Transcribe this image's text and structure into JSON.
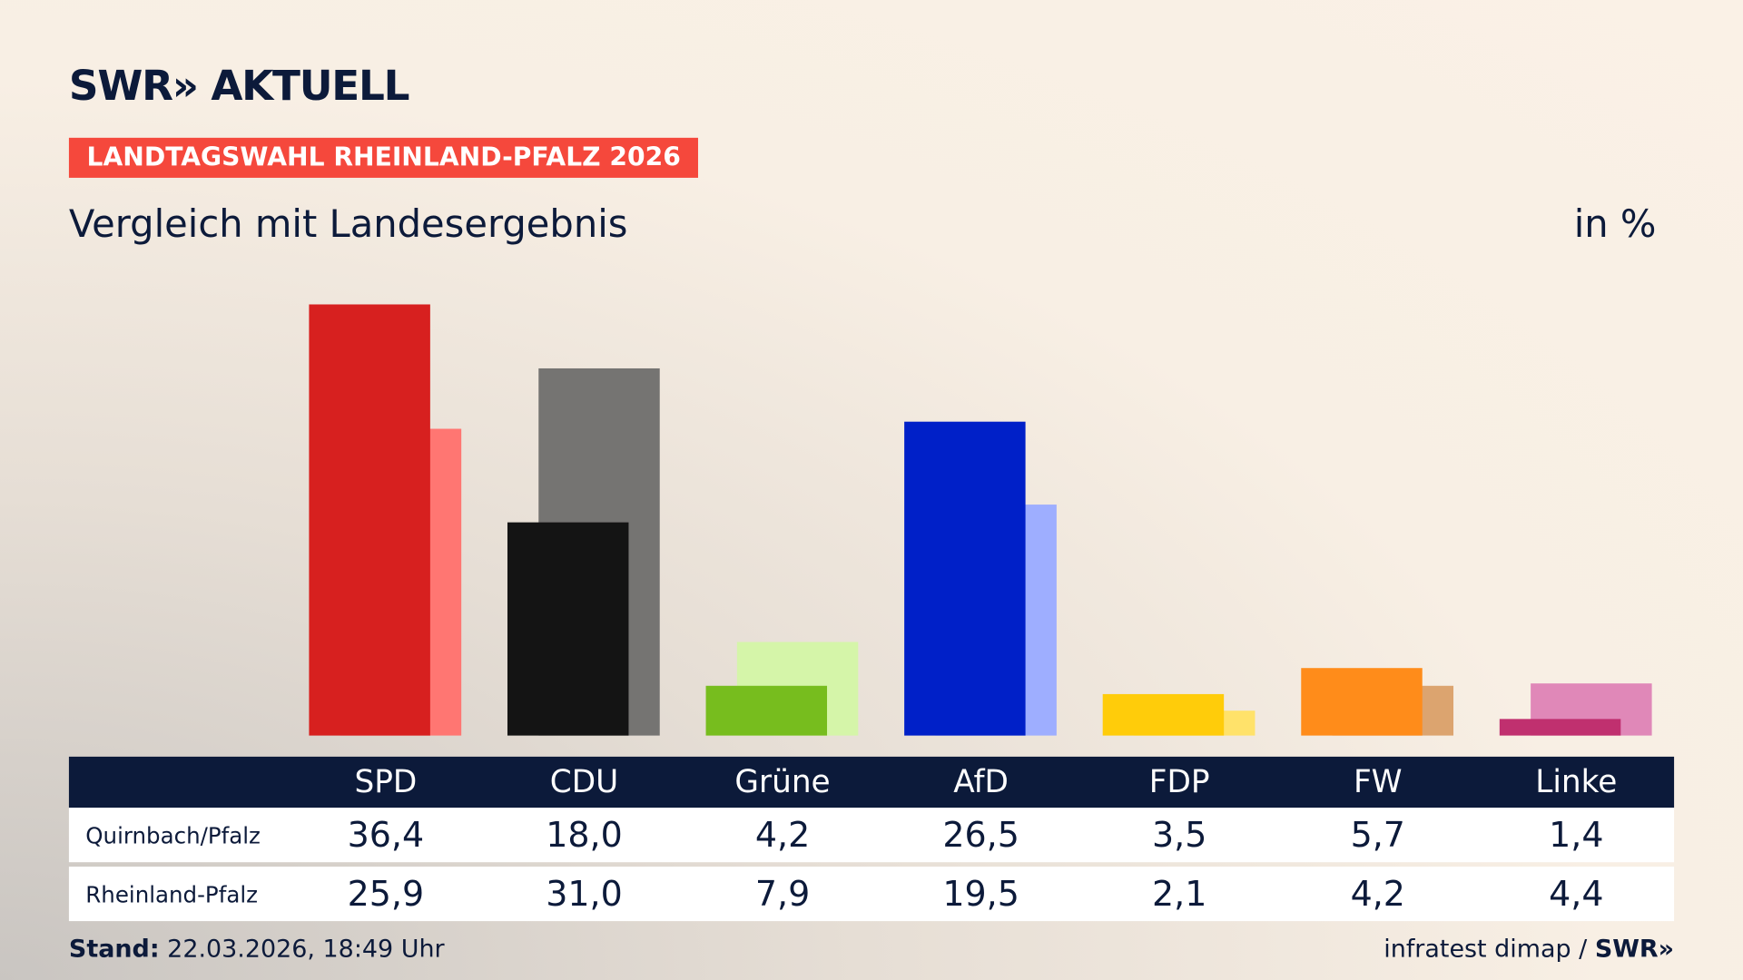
{
  "header": {
    "logo": "SWR» AKTUELL",
    "badge": "LANDTAGSWAHL RHEINLAND-PFALZ 2026",
    "subtitle": "Vergleich mit Landesergebnis",
    "unit": "in %"
  },
  "chart_data": {
    "type": "bar",
    "categories": [
      "SPD",
      "CDU",
      "Grüne",
      "AfD",
      "FDP",
      "FW",
      "Linke"
    ],
    "series": [
      {
        "name": "Quirnbach/Pfalz",
        "values": [
          36.4,
          18.0,
          4.2,
          26.5,
          3.5,
          5.7,
          1.4
        ],
        "display": [
          "36,4",
          "18,0",
          "4,2",
          "26,5",
          "3,5",
          "5,7",
          "1,4"
        ],
        "colors": [
          "#d7201f",
          "#141414",
          "#77bd1e",
          "#0020c8",
          "#ffcc0a",
          "#ff8c1a",
          "#c0306f"
        ]
      },
      {
        "name": "Rheinland-Pfalz",
        "values": [
          25.9,
          31.0,
          7.9,
          19.5,
          2.1,
          4.2,
          4.4
        ],
        "display": [
          "25,9",
          "31,0",
          "7,9",
          "19,5",
          "2,1",
          "4,2",
          "4,4"
        ],
        "colors": [
          "#ff7672",
          "#757472",
          "#d5f5a9",
          "#9eaeff",
          "#ffe26a",
          "#dca46f",
          "#e088b8"
        ]
      }
    ],
    "grid": false
  },
  "table_bg": "#0c1a3a",
  "footer": {
    "stand_label": "Stand:",
    "stand_value": " 22.03.2026, 18:49 Uhr",
    "source": "infratest dimap / ",
    "source_logo": "SWR»"
  }
}
